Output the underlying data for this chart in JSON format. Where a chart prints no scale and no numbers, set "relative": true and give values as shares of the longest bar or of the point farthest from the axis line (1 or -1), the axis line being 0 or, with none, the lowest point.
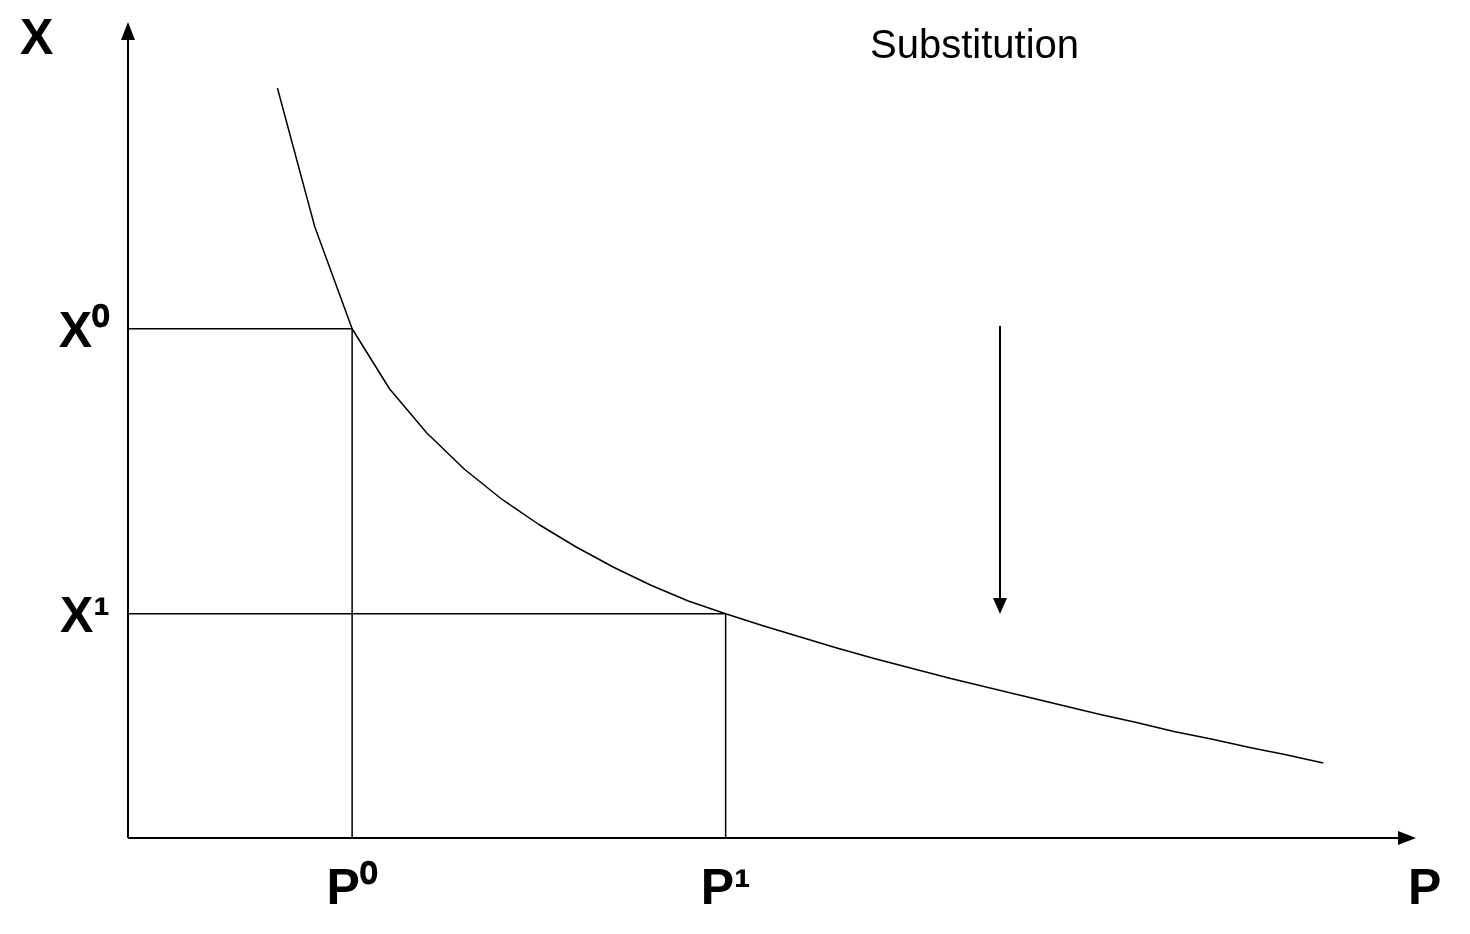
{
  "chart_data": {
    "type": "line",
    "relative": true,
    "xlabel": "P",
    "ylabel": "X",
    "categories": [
      null,
      null,
      null,
      null,
      null,
      null,
      "P⁰",
      null,
      null,
      null,
      null,
      null,
      null,
      null,
      null,
      null,
      "P¹",
      null,
      null,
      null,
      null,
      null,
      null,
      null,
      null,
      null,
      null,
      null,
      null,
      null,
      null,
      null,
      null,
      null,
      null
    ],
    "series": [
      {
        "color": "#000000",
        "values": [
          null,
          null,
          null,
          null,
          1.0,
          0.815,
          0.679,
          0.599,
          0.54,
          0.492,
          0.452,
          0.418,
          0.388,
          0.361,
          0.337,
          0.316,
          0.299,
          0.283,
          0.268,
          0.253,
          0.239,
          0.226,
          0.213,
          0.201,
          0.189,
          0.177,
          0.165,
          0.154,
          0.142,
          0.132,
          0.121,
          0.111,
          0.1,
          null,
          null
        ]
      }
    ],
    "annotations": [
      "Substitution"
    ],
    "ref_lines": [
      {
        "axis": "y",
        "value": 0.679,
        "label": "X⁰"
      },
      {
        "axis": "x",
        "value": "P⁰"
      },
      {
        "axis": "y",
        "value": 0.299,
        "label": "X¹"
      },
      {
        "axis": "x",
        "value": "P¹"
      }
    ],
    "marker": "none",
    "grid": false,
    "legend": false,
    "tick_labels": "x"
  }
}
